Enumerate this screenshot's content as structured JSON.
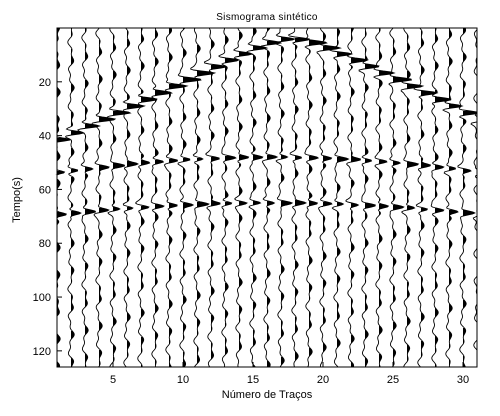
{
  "chart_data": {
    "type": "seismogram",
    "title": "Sismograma sintético",
    "xlabel": "Número de Traços",
    "ylabel": "Tempo(s)",
    "x_ticks": [
      "5",
      "10",
      "15",
      "20",
      "25",
      "30"
    ],
    "y_ticks": [
      "20",
      "40",
      "60",
      "80",
      "100",
      "120"
    ],
    "xlim": [
      1,
      31
    ],
    "ylim": [
      0,
      126
    ],
    "y_inverted": true,
    "trace_count": 31,
    "fill": "positive lobes filled black",
    "events": [
      {
        "name": "primary",
        "apex_trace": 17.5,
        "apex_time": 4,
        "slope_s_per_trace": 2.5
      },
      {
        "name": "multiple_1",
        "apex_trace": 16,
        "apex_time": 48,
        "slope_s_per_trace": 1.6
      },
      {
        "name": "multiple_2",
        "apex_trace": 16,
        "apex_time": 65,
        "slope_s_per_trace": 1.6
      }
    ]
  }
}
